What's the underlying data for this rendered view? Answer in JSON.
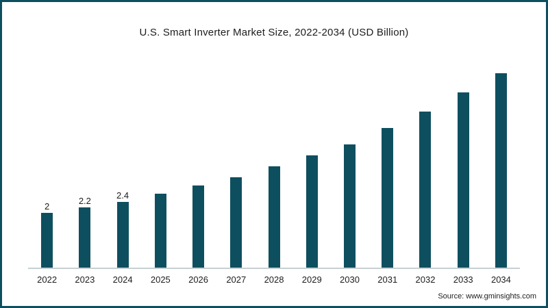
{
  "chart": {
    "source": "Source: www.gminsights.com"
  },
  "chart_data": {
    "type": "bar",
    "title": "U.S. Smart Inverter Market Size, 2022-2034 (USD Billion)",
    "categories": [
      "2022",
      "2023",
      "2024",
      "2025",
      "2026",
      "2027",
      "2028",
      "2029",
      "2030",
      "2031",
      "2032",
      "2033",
      "2034"
    ],
    "values": [
      2,
      2.2,
      2.4,
      2.7,
      3.0,
      3.3,
      3.7,
      4.1,
      4.5,
      5.1,
      5.7,
      6.4,
      7.2
    ],
    "data_labels": [
      "2",
      "2.2",
      "2.4",
      "",
      "",
      "",
      "",
      "",
      "",
      "",
      "",
      "",
      ""
    ],
    "xlabel": "",
    "ylabel": "USD Billion",
    "ylim": [
      0,
      7.5
    ],
    "bar_color": "#0e4f5f",
    "grid": false,
    "legend": "none"
  }
}
